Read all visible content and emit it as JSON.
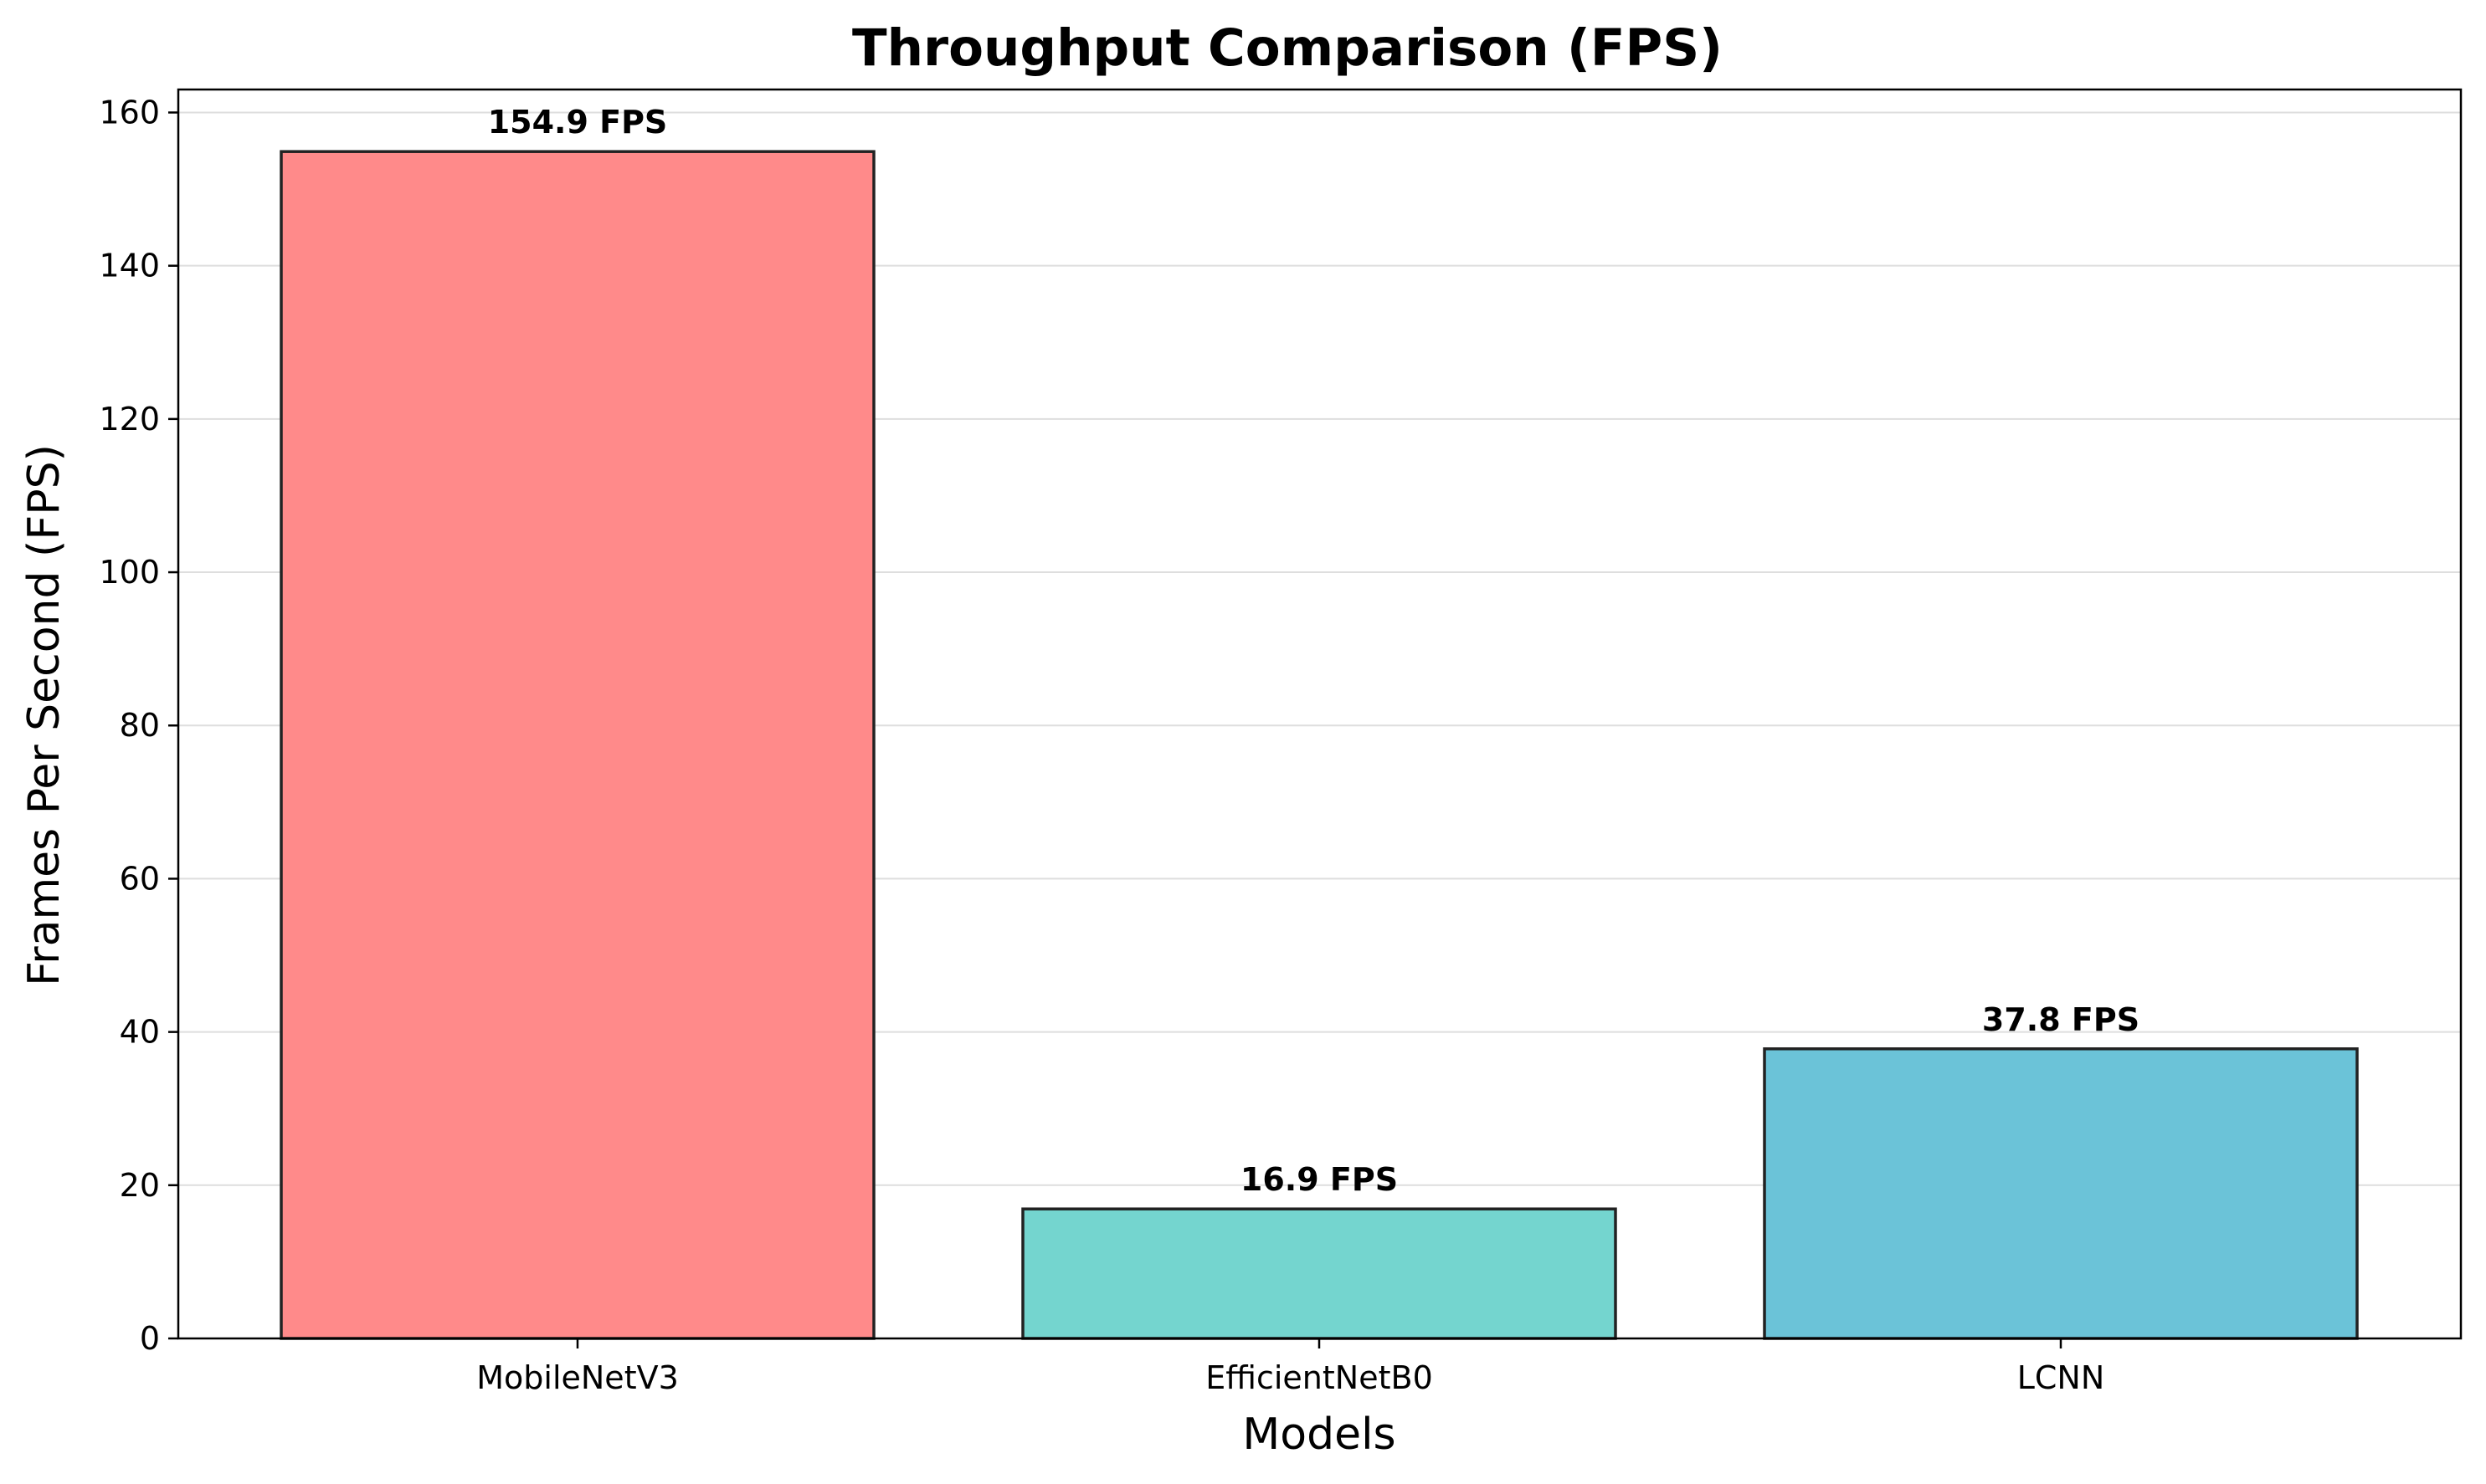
{
  "chart_data": {
    "type": "bar",
    "title": "Throughput Comparison (FPS)",
    "xlabel": "Models",
    "ylabel": "Frames Per Second (FPS)",
    "categories": [
      "MobileNetV3",
      "EfficientNetB0",
      "LCNN"
    ],
    "values": [
      154.9,
      16.9,
      37.8
    ],
    "data_labels": [
      "154.9 FPS",
      "16.9 FPS",
      "37.8 FPS"
    ],
    "colors": [
      "#FF8A8A",
      "#74D5CF",
      "#6BC3D8"
    ],
    "ylim": [
      0,
      163
    ],
    "yticks": [
      0,
      20,
      40,
      60,
      80,
      100,
      120,
      140,
      160
    ],
    "grid": "horizontal",
    "legend": "none"
  }
}
